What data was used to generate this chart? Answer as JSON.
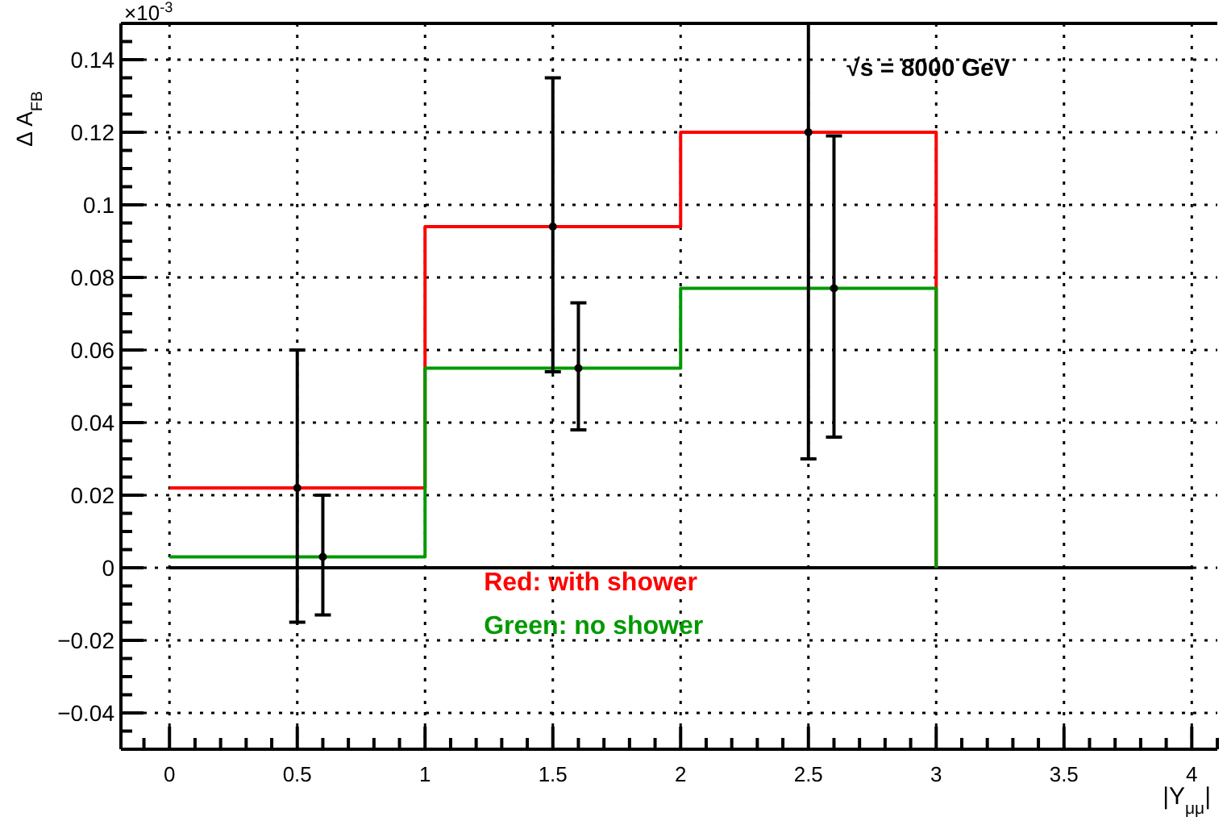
{
  "chart_data": {
    "type": "step",
    "xlabel": "|Y$_{μμ}$|",
    "ylabel": "Δ A$_{FB}$",
    "xlim": [
      -0.19,
      4.1
    ],
    "ylim": [
      -0.05,
      0.15
    ],
    "xticks": [
      {
        "value": -0.1,
        "label": null
      },
      0,
      {
        "value": 0.1,
        "label": null
      },
      {
        "value": 0.2,
        "label": null
      },
      {
        "value": 0.3,
        "label": null
      },
      {
        "value": 0.4,
        "label": null
      },
      0.5,
      {
        "value": 0.6,
        "label": null
      },
      {
        "value": 0.7,
        "label": null
      },
      {
        "value": 0.8,
        "label": null
      },
      {
        "value": 0.9,
        "label": null
      },
      1,
      {
        "value": 1.1,
        "label": null
      },
      {
        "value": 1.2,
        "label": null
      },
      {
        "value": 1.3,
        "label": null
      },
      {
        "value": 1.4,
        "label": null
      },
      1.5,
      {
        "value": 1.6,
        "label": null
      },
      {
        "value": 1.7,
        "label": null
      },
      {
        "value": 1.8,
        "label": null
      },
      {
        "value": 1.9,
        "label": null
      },
      2,
      {
        "value": 2.1,
        "label": null
      },
      {
        "value": 2.2,
        "label": null
      },
      {
        "value": 2.3,
        "label": null
      },
      {
        "value": 2.4,
        "label": null
      },
      2.5,
      {
        "value": 2.6,
        "label": null
      },
      {
        "value": 2.7,
        "label": null
      },
      {
        "value": 2.8,
        "label": null
      },
      {
        "value": 2.9,
        "label": null
      },
      3,
      {
        "value": 3.1,
        "label": null
      },
      {
        "value": 3.2,
        "label": null
      },
      {
        "value": 3.3,
        "label": null
      },
      {
        "value": 3.4,
        "label": null
      },
      3.5,
      {
        "value": 3.6,
        "label": null
      },
      {
        "value": 3.7,
        "label": null
      },
      {
        "value": 3.8,
        "label": null
      },
      {
        "value": 3.9,
        "label": null
      },
      4,
      {
        "value": 4.1,
        "label": null
      }
    ],
    "yticks": [
      {
        "value": -0.045,
        "label": null
      },
      {
        "value": -0.04,
        "label": "−0.04"
      },
      {
        "value": -0.035,
        "label": null
      },
      {
        "value": -0.03,
        "label": null
      },
      {
        "value": -0.025,
        "label": null
      },
      {
        "value": -0.02,
        "label": "−0.02"
      },
      {
        "value": -0.015,
        "label": null
      },
      {
        "value": -0.01,
        "label": null
      },
      {
        "value": -0.005,
        "label": null
      },
      0,
      {
        "value": 0.005,
        "label": null
      },
      {
        "value": 0.01,
        "label": null
      },
      {
        "value": 0.015,
        "label": null
      },
      0.02,
      {
        "value": 0.025,
        "label": null
      },
      {
        "value": 0.03,
        "label": null
      },
      {
        "value": 0.035,
        "label": null
      },
      0.04,
      {
        "value": 0.045,
        "label": null
      },
      {
        "value": 0.05,
        "label": null
      },
      {
        "value": 0.055,
        "label": null
      },
      0.06,
      {
        "value": 0.065,
        "label": null
      },
      {
        "value": 0.07,
        "label": null
      },
      {
        "value": 0.075,
        "label": null
      },
      0.08,
      {
        "value": 0.085,
        "label": null
      },
      {
        "value": 0.09,
        "label": null
      },
      {
        "value": 0.095,
        "label": null
      },
      0.1,
      {
        "value": 0.105,
        "label": null
      },
      {
        "value": 0.11,
        "label": null
      },
      {
        "value": 0.115,
        "label": null
      },
      0.12,
      {
        "value": 0.125,
        "label": null
      },
      {
        "value": 0.13,
        "label": null
      },
      {
        "value": 0.135,
        "label": null
      },
      0.14,
      {
        "value": 0.145,
        "label": null
      }
    ],
    "grid": true,
    "line_style": "solid",
    "ref_lines": [
      {
        "axis": "y",
        "value": 0,
        "color": "#000000"
      }
    ],
    "annotations": [
      "×10$^{-3}$",
      "√s = 8000 GeV"
    ],
    "series": [
      {
        "name": "Red: with shower",
        "color": "#ff0000",
        "x": [
          0,
          1,
          2,
          3
        ],
        "values": [
          0.022,
          0.094,
          0.12,
          0
        ]
      },
      {
        "name": "Green: no shower",
        "color": "#009900",
        "x": [
          0,
          1,
          2,
          3
        ],
        "values": [
          0.003,
          0.055,
          0.077,
          0
        ]
      },
      {
        "type": "scatter",
        "marker": "circle",
        "color": "#000000",
        "x": [
          0.5,
          1.5,
          2.5
        ],
        "values": [
          0.022,
          0.094,
          0.12
        ],
        "errors": [
          [
            -0.015,
            0.06
          ],
          [
            0.054,
            0.135
          ],
          [
            0.03,
            0.15
          ]
        ]
      },
      {
        "type": "scatter",
        "marker": "circle",
        "color": "#000000",
        "x": [
          0.6,
          1.6,
          2.6
        ],
        "values": [
          0.003,
          0.055,
          0.077
        ],
        "errors": [
          [
            -0.013,
            0.02
          ],
          [
            0.038,
            0.073
          ],
          [
            0.036,
            0.119
          ]
        ]
      }
    ]
  }
}
